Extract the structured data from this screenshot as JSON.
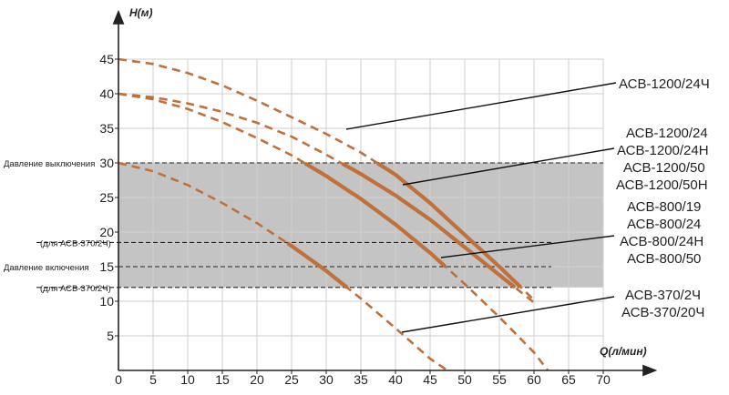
{
  "chart_data": {
    "type": "line",
    "xlabel": "Q(л/мин)",
    "ylabel": "H(м)",
    "xlim": [
      0,
      70
    ],
    "ylim": [
      0,
      45
    ],
    "x_ticks": [
      "0",
      "5",
      "10",
      "15",
      "20",
      "25",
      "30",
      "35",
      "40",
      "45",
      "50",
      "55",
      "60",
      "65",
      "70"
    ],
    "y_ticks": [
      "5",
      "10",
      "15",
      "20",
      "25",
      "30",
      "35",
      "40",
      "45"
    ],
    "grid": true,
    "band": {
      "from": 12,
      "to": 30,
      "color": "#c4c4c4"
    },
    "reference_lines": [
      {
        "label": "Давление выключения",
        "y": 30
      },
      {
        "label": "(для АСВ-370/2Ч)",
        "y": 18.5
      },
      {
        "label": "Давление включения",
        "y": 15
      },
      {
        "label": "(для АСВ-370/2Ч)",
        "y": 12
      }
    ],
    "series": [
      {
        "name": "АСВ-1200/24Ч",
        "x": [
          0,
          5,
          10,
          15,
          20,
          25,
          30,
          35,
          40,
          45,
          50,
          55,
          60
        ],
        "y": [
          45,
          44.3,
          43,
          41.2,
          39,
          36.6,
          34.2,
          31.5,
          28.3,
          24.2,
          19.6,
          15,
          10.2
        ]
      },
      {
        "name": "АСВ-1200/24, АСВ-1200/24Н, АСВ-1200/50, АСВ-1200/50Н",
        "x": [
          0,
          5,
          10,
          15,
          20,
          25,
          30,
          35,
          40,
          45,
          50,
          55,
          60
        ],
        "y": [
          40,
          39.5,
          38.6,
          37.4,
          35.8,
          33.8,
          31.2,
          28.4,
          25.3,
          21.8,
          17.8,
          13.8,
          9.8
        ]
      },
      {
        "name": "АСВ-800/19, АСВ-800/24, АСВ-800/24Н, АСВ-800/50",
        "x": [
          0,
          5,
          10,
          15,
          20,
          25,
          30,
          35,
          40,
          45,
          50,
          55,
          60,
          62
        ],
        "y": [
          40,
          39.2,
          37.8,
          35.9,
          33.6,
          31.1,
          28.1,
          24.8,
          21.1,
          17,
          12.5,
          7.7,
          2.6,
          0
        ]
      },
      {
        "name": "АСВ-370/2Ч, АСВ-370/20Ч",
        "x": [
          0,
          5,
          10,
          15,
          20,
          25,
          30,
          35,
          40,
          45,
          47.5
        ],
        "y": [
          30,
          28.8,
          26.8,
          24.2,
          21.3,
          18,
          14.4,
          10.4,
          6.1,
          1.7,
          0
        ]
      }
    ],
    "labels": {
      "acv1200_24ch": "АСВ-1200/24Ч",
      "acv1200_24": "АСВ-1200/24",
      "acv1200_24n": "АСВ-1200/24Н",
      "acv1200_50": "АСВ-1200/50",
      "acv1200_50n": "АСВ-1200/50Н",
      "acv800_19": "АСВ-800/19",
      "acv800_24": "АСВ-800/24",
      "acv800_24n": "АСВ-800/24Н",
      "acv800_50": "АСВ-800/50",
      "acv370_2ch": "АСВ-370/2Ч",
      "acv370_20ch": "АСВ-370/20Ч"
    },
    "colors": {
      "curve": "#c0703a",
      "band": "#c4c4c4",
      "grid": "#cfcfcf",
      "axis": "#222222"
    }
  }
}
